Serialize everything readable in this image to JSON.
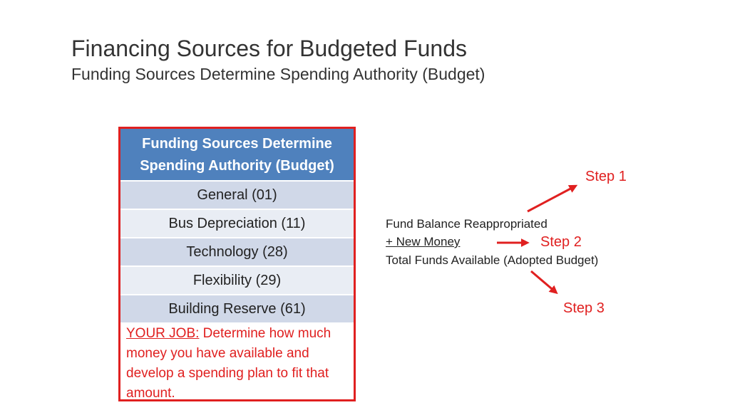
{
  "slide": {
    "title": "Financing Sources for Budgeted Funds",
    "subtitle": "Funding Sources Determine Spending Authority (Budget)"
  },
  "table": {
    "header": "Funding Sources Determine Spending Authority (Budget)",
    "rows": [
      "General (01)",
      "Bus Depreciation (11)",
      "Technology (28)",
      "Flexibility (29)",
      "Building Reserve (61)"
    ],
    "note_label": "YOUR JOB:",
    "note_text": " Determine how much money you have available and develop a spending plan to fit that amount."
  },
  "calculation": {
    "line1": "Fund Balance Reappropriated",
    "line2": "+ New Money",
    "line3": "Total Funds Available (Adopted Budget)"
  },
  "steps": {
    "step1": "Step 1",
    "step2": "Step 2",
    "step3": "Step 3"
  },
  "colors": {
    "accent_red": "#e02020",
    "header_blue": "#4f81bd",
    "row_dark": "#d0d8e8",
    "row_light": "#e9edf4"
  }
}
